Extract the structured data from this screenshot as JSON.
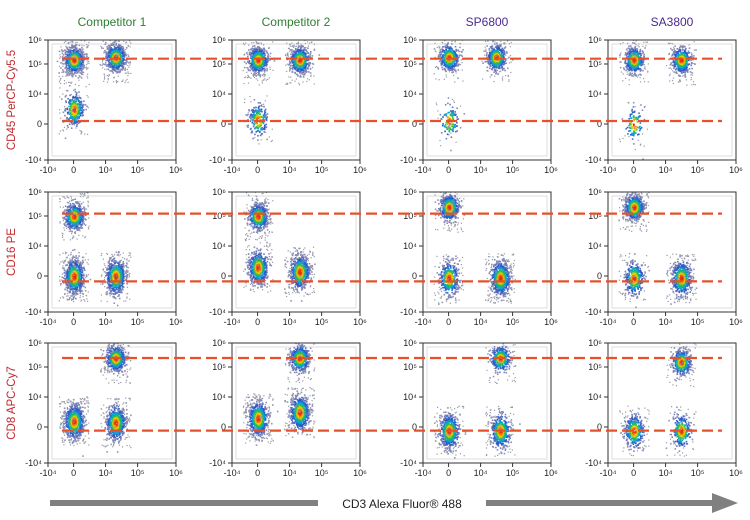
{
  "chart_data": {
    "type": "scatter",
    "subtype": "flow-cytometry-density-grid",
    "title": "",
    "columns": [
      {
        "label": "Competitor 1",
        "color": "#2e7d32"
      },
      {
        "label": "Competitor 2",
        "color": "#2e7d32"
      },
      {
        "label": "SP6800",
        "color": "#4a2a8c"
      },
      {
        "label": "SA3800",
        "color": "#4a2a8c"
      }
    ],
    "rows": [
      {
        "ylabel": "CD45 PerCP-Cy5.5",
        "color": "#c0282d",
        "gates": [
          150000,
          1000
        ]
      },
      {
        "ylabel": "CD16 PE",
        "color": "#c0282d",
        "gates": [
          120000,
          -1500
        ]
      },
      {
        "ylabel": "CD8 APC-Cy7",
        "color": "#c0282d",
        "gates": [
          200000,
          -1000
        ]
      }
    ],
    "xlabel": "CD3 Alexa Fluor® 488",
    "xlabel_arrow_color": "#808080",
    "gate_color": "#e8502a",
    "x_ticks": [
      "-10⁴",
      "0",
      "10⁴",
      "10⁵",
      "10⁶"
    ],
    "y_ticks": [
      "10⁶",
      "10⁵",
      "10⁴",
      "0",
      "-10⁴"
    ],
    "axis_scale": "biexponential",
    "xlim": [
      -10000,
      1000000
    ],
    "ylim": [
      -10000,
      1000000
    ],
    "clusters": [
      [
        [
          {
            "x": 20000,
            "y": 170000,
            "n": 850
          },
          {
            "x": 0,
            "y": 140000,
            "n": 900
          },
          {
            "x": 0,
            "y": 5000,
            "n": 280
          }
        ],
        [
          {
            "x": 0,
            "y": 140000,
            "n": 650
          },
          {
            "x": 20000,
            "y": 140000,
            "n": 650
          },
          {
            "x": 0,
            "y": 1500,
            "n": 200
          }
        ],
        [
          {
            "x": 0,
            "y": 170000,
            "n": 450
          },
          {
            "x": 30000,
            "y": 170000,
            "n": 450
          },
          {
            "x": 0,
            "y": 1000,
            "n": 110
          }
        ],
        [
          {
            "x": 0,
            "y": 140000,
            "n": 450
          },
          {
            "x": 30000,
            "y": 140000,
            "n": 450
          },
          {
            "x": 0,
            "y": 0,
            "n": 90
          }
        ]
      ],
      [
        [
          {
            "x": 0,
            "y": 100000,
            "n": 600
          },
          {
            "x": 0,
            "y": 0,
            "n": 750
          },
          {
            "x": 20000,
            "y": 0,
            "n": 750
          }
        ],
        [
          {
            "x": 0,
            "y": 100000,
            "n": 550
          },
          {
            "x": 0,
            "y": 3000,
            "n": 550
          },
          {
            "x": 20000,
            "y": 1500,
            "n": 700
          }
        ],
        [
          {
            "x": 0,
            "y": 200000,
            "n": 550
          },
          {
            "x": 0,
            "y": -500,
            "n": 400
          },
          {
            "x": 40000,
            "y": -500,
            "n": 700
          }
        ],
        [
          {
            "x": 0,
            "y": 200000,
            "n": 600
          },
          {
            "x": 0,
            "y": -500,
            "n": 350
          },
          {
            "x": 30000,
            "y": -500,
            "n": 550
          }
        ]
      ],
      [
        [
          {
            "x": 0,
            "y": 2000,
            "n": 800
          },
          {
            "x": 20000,
            "y": 200000,
            "n": 600
          },
          {
            "x": 20000,
            "y": 1500,
            "n": 600
          }
        ],
        [
          {
            "x": 0,
            "y": 3000,
            "n": 700
          },
          {
            "x": 20000,
            "y": 200000,
            "n": 500
          },
          {
            "x": 20000,
            "y": 5000,
            "n": 650
          }
        ],
        [
          {
            "x": 0,
            "y": -1000,
            "n": 550
          },
          {
            "x": 40000,
            "y": 200000,
            "n": 350
          },
          {
            "x": 40000,
            "y": -1000,
            "n": 450
          }
        ],
        [
          {
            "x": 0,
            "y": -1000,
            "n": 350
          },
          {
            "x": 30000,
            "y": 150000,
            "n": 400
          },
          {
            "x": 30000,
            "y": -1000,
            "n": 250
          }
        ]
      ]
    ]
  }
}
